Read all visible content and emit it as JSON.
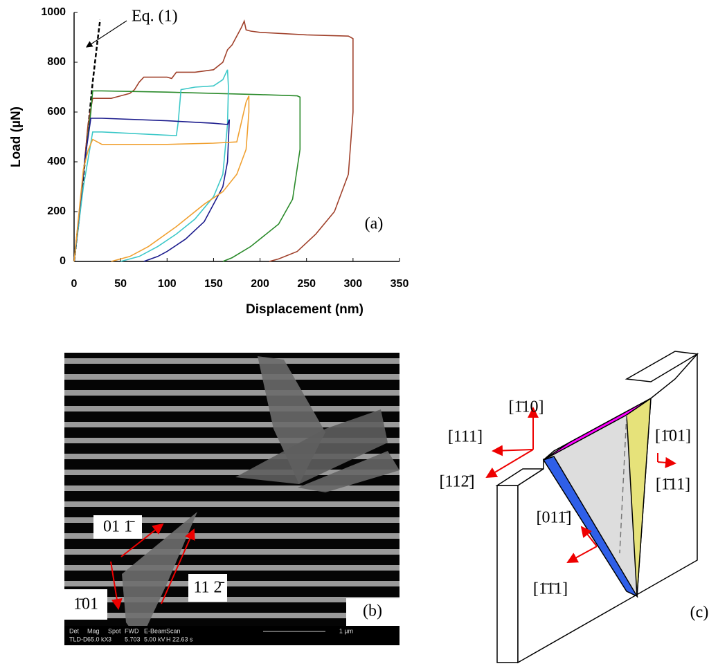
{
  "chart_data": {
    "type": "line",
    "xlabel": "Displacement (nm)",
    "ylabel": "Load (µN)",
    "xlim": [
      0,
      350
    ],
    "ylim": [
      0,
      1000
    ],
    "xticks": [
      0,
      50,
      100,
      150,
      200,
      250,
      300,
      350
    ],
    "yticks": [
      0,
      200,
      400,
      600,
      800,
      1000
    ],
    "panel_label": "(a)",
    "series": [
      {
        "name": "Eq. (1)",
        "color": "#000000",
        "dash": true,
        "x": [
          0,
          5,
          10,
          15,
          20,
          25,
          28
        ],
        "values": [
          0,
          160,
          340,
          530,
          720,
          880,
          970
        ]
      },
      {
        "color": "#a0412b",
        "x": [
          0,
          5,
          10,
          15,
          20,
          40,
          50,
          60,
          65,
          70,
          75,
          100,
          105,
          110,
          130,
          150,
          160,
          165,
          170,
          180,
          183,
          185,
          190,
          200,
          250,
          295,
          300,
          300,
          295,
          280,
          260,
          240,
          220,
          210
        ],
        "values": [
          0,
          150,
          350,
          550,
          655,
          655,
          665,
          675,
          690,
          720,
          740,
          740,
          735,
          760,
          760,
          770,
          800,
          850,
          870,
          940,
          965,
          930,
          925,
          920,
          910,
          905,
          895,
          600,
          350,
          200,
          110,
          40,
          10,
          0
        ]
      },
      {
        "color": "#2a8a2a",
        "x": [
          0,
          10,
          18,
          20,
          30,
          100,
          200,
          240,
          243,
          243,
          235,
          220,
          190,
          170,
          160
        ],
        "values": [
          0,
          350,
          600,
          685,
          685,
          680,
          670,
          665,
          660,
          450,
          250,
          150,
          60,
          15,
          0
        ]
      },
      {
        "color": "#3cc8c8",
        "x": [
          0,
          10,
          20,
          30,
          110,
          112,
          115,
          130,
          150,
          160,
          165,
          166,
          165,
          160,
          150,
          130,
          110,
          90,
          70,
          50
        ],
        "values": [
          0,
          300,
          520,
          520,
          505,
          560,
          690,
          700,
          705,
          730,
          770,
          700,
          550,
          350,
          260,
          170,
          110,
          60,
          20,
          0
        ]
      },
      {
        "color": "#1a1a8c",
        "x": [
          0,
          12,
          18,
          30,
          100,
          150,
          165,
          167,
          165,
          160,
          150,
          140,
          120,
          100,
          90,
          75
        ],
        "values": [
          0,
          420,
          575,
          575,
          565,
          555,
          550,
          570,
          400,
          300,
          230,
          160,
          90,
          40,
          20,
          0
        ]
      },
      {
        "color": "#f0a030",
        "x": [
          0,
          10,
          15,
          20,
          25,
          30,
          100,
          150,
          175,
          180,
          185,
          188,
          188,
          185,
          175,
          160,
          140,
          110,
          80,
          60,
          40
        ],
        "values": [
          0,
          370,
          445,
          490,
          480,
          470,
          470,
          475,
          480,
          560,
          640,
          665,
          600,
          450,
          350,
          280,
          230,
          140,
          60,
          20,
          0
        ]
      }
    ]
  },
  "sem_image": {
    "panel_label": "(b)",
    "labels": [
      "01 1̄",
      "1̄01",
      "11 2̄"
    ],
    "info_bar": [
      [
        "Det",
        "TLD-D"
      ],
      [
        "Mag",
        "65.0 kX"
      ],
      [
        "Spot",
        "3"
      ],
      [
        "FWD",
        "5.703"
      ],
      [
        "E-Beam",
        "5.00 kV"
      ],
      [
        "Scan",
        "H 22.63 s"
      ]
    ],
    "scale_bar": "1 µm"
  },
  "diagram": {
    "panel_label": "(c)",
    "labels": [
      "[1̄10]",
      "[111]",
      "[112̄]",
      "[1̄01]",
      "[1̄11]",
      "[011̄]",
      "[1̄1̄1]"
    ]
  }
}
